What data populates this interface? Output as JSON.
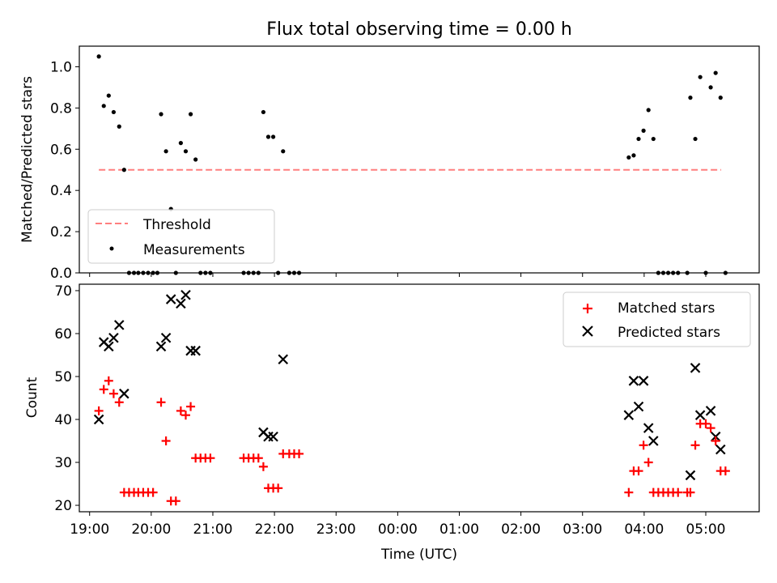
{
  "colors": {
    "threshold": "#ff7f7f",
    "measurement": "#000000",
    "matched": "#ff0000",
    "predicted": "#000000"
  },
  "chart_data": [
    {
      "type": "scatter",
      "title": "Flux total observing time = 0.00 h",
      "xlabel": "",
      "ylabel": "Matched/Predicted stars",
      "xlim": [
        18.833,
        29.867
      ],
      "ylim": [
        0.0,
        1.1
      ],
      "yticks": [
        "0.0",
        "0.2",
        "0.4",
        "0.6",
        "0.8",
        "1.0"
      ],
      "legend": {
        "position": "lower-left",
        "threshold_label": "Threshold",
        "measurements_label": "Measurements"
      },
      "threshold": {
        "x_start": 19.15,
        "x_end": 29.25,
        "y": 0.5
      },
      "measurements": [
        [
          19.15,
          1.05
        ],
        [
          19.23,
          0.81
        ],
        [
          19.31,
          0.86
        ],
        [
          19.39,
          0.78
        ],
        [
          19.48,
          0.71
        ],
        [
          19.56,
          0.5
        ],
        [
          19.64,
          0.0
        ],
        [
          19.72,
          0.0
        ],
        [
          19.79,
          0.0
        ],
        [
          19.87,
          0.0
        ],
        [
          19.95,
          0.0
        ],
        [
          20.03,
          0.0
        ],
        [
          20.1,
          0.0
        ],
        [
          20.16,
          0.77
        ],
        [
          20.24,
          0.59
        ],
        [
          20.32,
          0.31
        ],
        [
          20.4,
          0.0
        ],
        [
          20.48,
          0.63
        ],
        [
          20.56,
          0.59
        ],
        [
          20.64,
          0.77
        ],
        [
          20.72,
          0.55
        ],
        [
          20.8,
          0.0
        ],
        [
          20.88,
          0.0
        ],
        [
          20.96,
          0.0
        ],
        [
          21.5,
          0.0
        ],
        [
          21.58,
          0.0
        ],
        [
          21.66,
          0.0
        ],
        [
          21.74,
          0.0
        ],
        [
          21.82,
          0.78
        ],
        [
          21.9,
          0.66
        ],
        [
          21.98,
          0.66
        ],
        [
          22.06,
          0.0
        ],
        [
          22.14,
          0.59
        ],
        [
          22.24,
          0.0
        ],
        [
          22.32,
          0.0
        ],
        [
          22.4,
          0.0
        ],
        [
          27.75,
          0.56
        ],
        [
          27.83,
          0.57
        ],
        [
          27.91,
          0.65
        ],
        [
          27.99,
          0.69
        ],
        [
          28.07,
          0.79
        ],
        [
          28.15,
          0.65
        ],
        [
          28.23,
          0.0
        ],
        [
          28.31,
          0.0
        ],
        [
          28.39,
          0.0
        ],
        [
          28.47,
          0.0
        ],
        [
          28.55,
          0.0
        ],
        [
          28.7,
          0.0
        ],
        [
          28.75,
          0.85
        ],
        [
          28.83,
          0.65
        ],
        [
          28.91,
          0.95
        ],
        [
          29.0,
          0.0
        ],
        [
          29.08,
          0.9
        ],
        [
          29.16,
          0.97
        ],
        [
          29.24,
          0.85
        ],
        [
          29.32,
          0.0
        ]
      ]
    },
    {
      "type": "scatter",
      "title": "",
      "xlabel": "Time (UTC)",
      "ylabel": "Count",
      "xlim": [
        18.833,
        29.867
      ],
      "ylim": [
        18.5,
        71.5
      ],
      "yticks": [
        "20",
        "30",
        "40",
        "50",
        "60",
        "70"
      ],
      "xticks": [
        "19:00",
        "20:00",
        "21:00",
        "22:00",
        "23:00",
        "00:00",
        "01:00",
        "02:00",
        "03:00",
        "04:00",
        "05:00"
      ],
      "legend": {
        "position": "top-right",
        "matched_label": "Matched stars",
        "predicted_label": "Predicted stars"
      },
      "series": [
        {
          "name": "Matched stars",
          "marker": "+",
          "points": [
            [
              19.15,
              42
            ],
            [
              19.23,
              47
            ],
            [
              19.31,
              49
            ],
            [
              19.39,
              46
            ],
            [
              19.48,
              44
            ],
            [
              19.56,
              23
            ],
            [
              19.64,
              23
            ],
            [
              19.72,
              23
            ],
            [
              19.79,
              23
            ],
            [
              19.87,
              23
            ],
            [
              19.95,
              23
            ],
            [
              20.03,
              23
            ],
            [
              20.16,
              44
            ],
            [
              20.24,
              35
            ],
            [
              20.32,
              21
            ],
            [
              20.4,
              21
            ],
            [
              20.48,
              42
            ],
            [
              20.56,
              41
            ],
            [
              20.64,
              43
            ],
            [
              20.72,
              31
            ],
            [
              20.8,
              31
            ],
            [
              20.88,
              31
            ],
            [
              20.96,
              31
            ],
            [
              21.5,
              31
            ],
            [
              21.58,
              31
            ],
            [
              21.66,
              31
            ],
            [
              21.74,
              31
            ],
            [
              21.82,
              29
            ],
            [
              21.9,
              24
            ],
            [
              21.98,
              24
            ],
            [
              22.06,
              24
            ],
            [
              22.14,
              32
            ],
            [
              22.24,
              32
            ],
            [
              22.32,
              32
            ],
            [
              22.4,
              32
            ],
            [
              27.75,
              23
            ],
            [
              27.83,
              28
            ],
            [
              27.91,
              28
            ],
            [
              27.99,
              34
            ],
            [
              28.07,
              30
            ],
            [
              28.15,
              23
            ],
            [
              28.23,
              23
            ],
            [
              28.31,
              23
            ],
            [
              28.39,
              23
            ],
            [
              28.47,
              23
            ],
            [
              28.55,
              23
            ],
            [
              28.7,
              23
            ],
            [
              28.75,
              23
            ],
            [
              28.83,
              34
            ],
            [
              28.91,
              39
            ],
            [
              29.0,
              39
            ],
            [
              29.08,
              38
            ],
            [
              29.16,
              35
            ],
            [
              29.24,
              28
            ],
            [
              29.32,
              28
            ]
          ]
        },
        {
          "name": "Predicted stars",
          "marker": "x",
          "points": [
            [
              19.15,
              40
            ],
            [
              19.23,
              58
            ],
            [
              19.31,
              57
            ],
            [
              19.39,
              59
            ],
            [
              19.48,
              62
            ],
            [
              19.56,
              46
            ],
            [
              20.16,
              57
            ],
            [
              20.24,
              59
            ],
            [
              20.32,
              68
            ],
            [
              20.48,
              67
            ],
            [
              20.56,
              69
            ],
            [
              20.64,
              56
            ],
            [
              20.72,
              56
            ],
            [
              21.82,
              37
            ],
            [
              21.9,
              36
            ],
            [
              21.98,
              36
            ],
            [
              22.14,
              54
            ],
            [
              27.75,
              41
            ],
            [
              27.83,
              49
            ],
            [
              27.91,
              43
            ],
            [
              27.99,
              49
            ],
            [
              28.07,
              38
            ],
            [
              28.15,
              35
            ],
            [
              28.75,
              27
            ],
            [
              28.83,
              52
            ],
            [
              28.91,
              41
            ],
            [
              29.08,
              42
            ],
            [
              29.16,
              36
            ],
            [
              29.24,
              33
            ]
          ]
        }
      ]
    }
  ]
}
